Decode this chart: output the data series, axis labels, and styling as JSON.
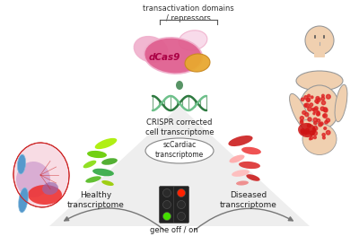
{
  "bg_color": "#ffffff",
  "text_transactivation": "transactivation domains\n/ repressors",
  "text_dcas9": "dCas9",
  "text_crispr": "CRISPR corrected\ncell transcriptome",
  "text_sccardiac": "scCardiac\ntranscriptome",
  "text_healthy": "Healthy\ntranscriptome",
  "text_diseased": "Diseased\ntranscriptome",
  "text_gene": "gene off / on",
  "triangle_color": "#c8c8c8",
  "triangle_alpha": 0.3,
  "traffic_body_color": "#222222",
  "traffic_light_green": "#44dd00",
  "traffic_light_red": "#ff2200",
  "traffic_light_dark": "#2a2a2a",
  "oval_fill": "#ffffff",
  "oval_edge": "#888888",
  "dna_color1": "#2e7a40",
  "dna_color2": "#6dc08a",
  "dcas9_pink": "#e06090",
  "dcas9_light_pink": "#f0b0cc",
  "dcas9_very_light": "#f8d8e8",
  "dcas9_yellow": "#e8a830",
  "dcas9_light_yellow": "#f0c870",
  "heart_red": "#cc2222",
  "heart_bright_red": "#ee3333",
  "heart_blue": "#5599cc",
  "heart_light_blue": "#88bbdd",
  "heart_purple": "#9966aa",
  "heart_light_purple": "#cc99cc",
  "heart_pink_light": "#f0c0cc",
  "heart_pink_very_light": "#f8dce4",
  "human_skin": "#f0d0b0",
  "human_skin_dark": "#d4a882",
  "human_outline": "#999999",
  "figsize": [
    4.0,
    2.73
  ],
  "dpi": 100
}
